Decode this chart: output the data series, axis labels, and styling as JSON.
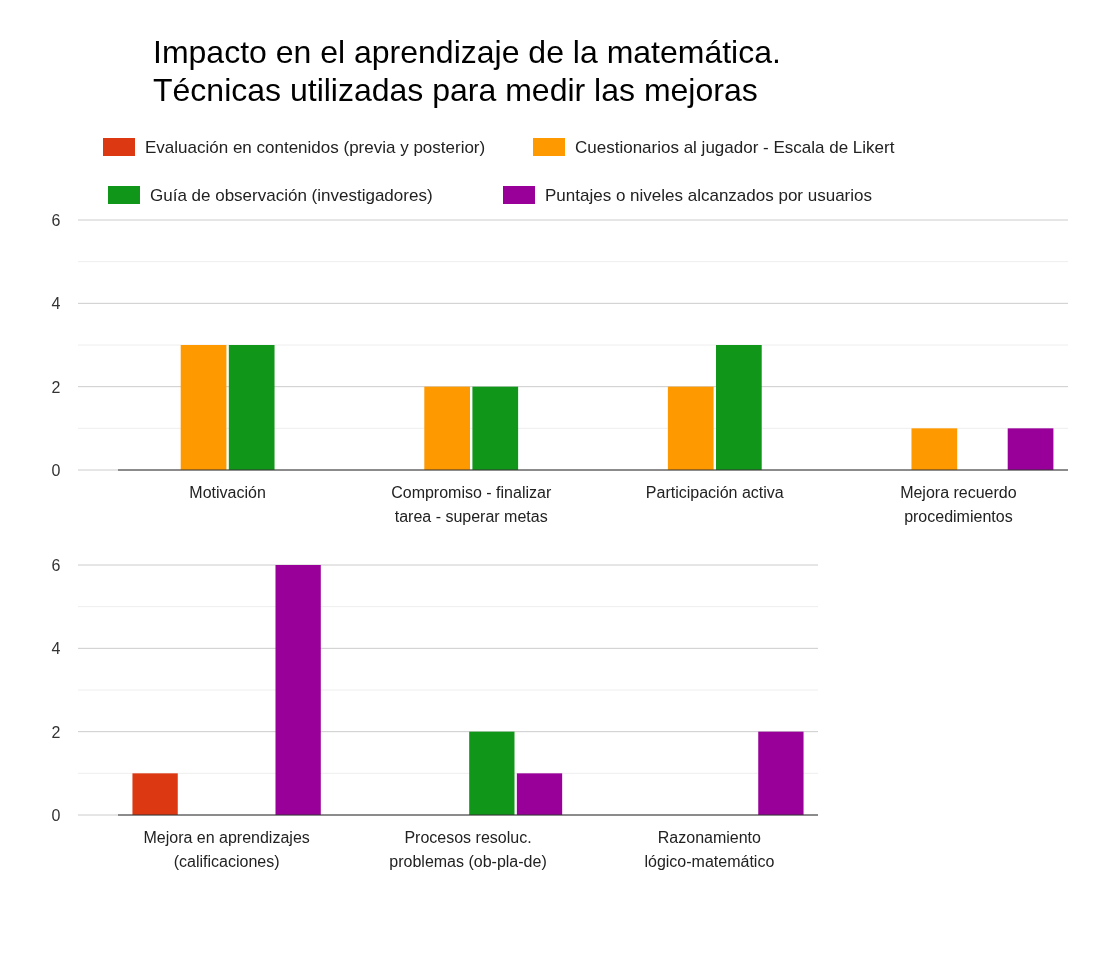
{
  "chart_data": [
    {
      "type": "bar",
      "title": "Impacto en el aprendizaje de la matemática.\nTécnicas utilizadas para medir las mejoras",
      "categories": [
        "Motivación",
        "Compromiso - finalizar tarea - superar metas",
        "Participación activa",
        "Mejora recuerdo procedimientos"
      ],
      "series": [
        {
          "name": "Evaluación en contenidos (previa y posterior)",
          "color": "#dc3912",
          "values": [
            0,
            0,
            0,
            0
          ]
        },
        {
          "name": "Cuestionarios al jugador - Escala de Likert",
          "color": "#ff9900",
          "values": [
            3,
            2,
            2,
            1
          ]
        },
        {
          "name": "Guía de observación (investigadores)",
          "color": "#109618",
          "values": [
            3,
            2,
            3,
            0
          ]
        },
        {
          "name": "Puntajes o niveles alcanzados por usuarios",
          "color": "#990099",
          "values": [
            0,
            0,
            0,
            1
          ]
        }
      ],
      "ylim": [
        0,
        6
      ],
      "yticks": [
        0,
        {
          "value": 1,
          "label": null
        },
        2,
        {
          "value": 3,
          "label": null
        },
        4,
        {
          "value": 5,
          "label": null
        },
        6
      ],
      "grid": "y",
      "legend": "top"
    },
    {
      "type": "bar",
      "categories": [
        "Mejora en aprendizajes (calificaciones)",
        "Procesos resoluc. problemas (ob-pla-de)",
        "Razonamiento lógico-matemático"
      ],
      "series": [
        {
          "color": "#dc3912",
          "values": [
            1,
            0,
            0
          ]
        },
        {
          "color": "#ff9900",
          "values": [
            0,
            0,
            0
          ]
        },
        {
          "color": "#109618",
          "values": [
            0,
            2,
            0
          ]
        },
        {
          "color": "#990099",
          "values": [
            6,
            1,
            2
          ]
        }
      ],
      "ylim": [
        0,
        6
      ],
      "yticks": [
        0,
        {
          "value": 1,
          "label": null
        },
        2,
        {
          "value": 3,
          "label": null
        },
        4,
        {
          "value": 5,
          "label": null
        },
        6
      ],
      "grid": "y"
    }
  ]
}
